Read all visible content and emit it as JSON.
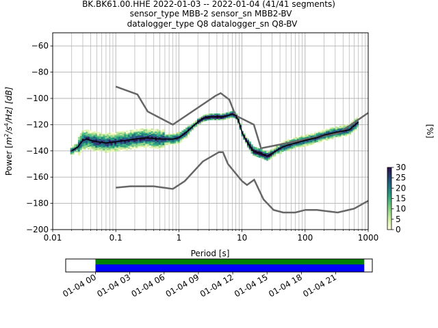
{
  "chart_data": [
    {
      "type": "heatmap",
      "title_lines": [
        "BK.BK61.00.HHE   2022-01-03 -- 2022-01-04  (41/41 segments)",
        "sensor_type MBB-2 sensor_sn MBB2-BV",
        "datalogger_type Q8 datalogger_sn Q8-BV"
      ],
      "xlabel": "Period [s]",
      "ylabel_parts": {
        "pre": "Power [",
        "m": "m",
        "m_sup": "2",
        "s": "/s",
        "s_sup": "4",
        "post": "/Hz] [dB]"
      },
      "xscale": "log",
      "xlim": [
        0.01,
        1000
      ],
      "ylim": [
        -200,
        -50
      ],
      "x_tick_labels": [
        {
          "value": 0.01,
          "label": "0.01"
        },
        {
          "value": 0.1,
          "label": "0.1"
        },
        {
          "value": 1,
          "label": "1"
        },
        {
          "value": 10,
          "label": "10"
        },
        {
          "value": 100,
          "label": "100"
        },
        {
          "value": 1000,
          "label": "1000"
        }
      ],
      "y_tick_labels": [
        {
          "value": -60,
          "label": "−60"
        },
        {
          "value": -80,
          "label": "−80"
        },
        {
          "value": -100,
          "label": "−100"
        },
        {
          "value": -120,
          "label": "−120"
        },
        {
          "value": -140,
          "label": "−140"
        },
        {
          "value": -160,
          "label": "−160"
        },
        {
          "value": -180,
          "label": "−180"
        },
        {
          "value": -200,
          "label": "−200"
        }
      ],
      "grid": true,
      "noise_models": {
        "nhnm": {
          "period": [
            0.1,
            0.22,
            0.32,
            0.8,
            3.8,
            4.6,
            6.3,
            7.9,
            15.4,
            20,
            354.8,
            1000
          ],
          "db": [
            -91,
            -97,
            -110,
            -120,
            -98,
            -96,
            -101,
            -113,
            -120,
            -138,
            -126,
            -111
          ]
        },
        "nlnm": {
          "period": [
            0.1,
            0.17,
            0.4,
            0.8,
            1.24,
            2.4,
            4.3,
            5,
            6,
            10,
            12,
            15.6,
            21.9,
            31.6,
            45,
            70,
            101,
            154,
            328,
            600,
            1000
          ],
          "db": [
            -168,
            -167,
            -167,
            -169,
            -163,
            -148,
            -141,
            -141,
            -150,
            -163,
            -166,
            -162,
            -177,
            -185,
            -187,
            -187,
            -185,
            -185,
            -187,
            -184,
            -178
          ]
        }
      },
      "mode_curve": {
        "period": [
          0.02,
          0.025,
          0.03,
          0.035,
          0.04,
          0.05,
          0.07,
          0.1,
          0.15,
          0.2,
          0.3,
          0.5,
          0.8,
          1,
          1.3,
          1.6,
          2,
          2.5,
          3,
          4,
          5,
          6,
          7,
          8,
          9,
          10,
          12,
          15,
          20,
          25,
          30,
          40,
          50,
          70,
          100,
          150,
          200,
          300,
          500,
          700
        ],
        "db": [
          -140,
          -137,
          -132,
          -131,
          -132,
          -133,
          -134,
          -133,
          -132,
          -131,
          -130,
          -131,
          -131,
          -130,
          -126,
          -122,
          -118,
          -115,
          -114,
          -114,
          -114,
          -113,
          -112,
          -113,
          -118,
          -126,
          -133,
          -140,
          -142,
          -144,
          -142,
          -138,
          -136,
          -134,
          -132,
          -130,
          -128,
          -126,
          -124,
          -118
        ]
      },
      "colorbar": {
        "label": "[%]",
        "range": [
          0,
          30
        ],
        "ticks": [
          "0",
          "5",
          "10",
          "15",
          "20",
          "25",
          "30"
        ]
      }
    },
    {
      "type": "timeline",
      "x_tick_labels": [
        "01-04 00",
        "01-04 03",
        "01-04 06",
        "01-04 09",
        "01-04 12",
        "01-04 15",
        "01-04 18",
        "01-04 21"
      ],
      "span_hours": [
        -2.6,
        24.2
      ],
      "data_hours": [
        0,
        23.5
      ],
      "colors": {
        "coverage": "#008000",
        "data": "#0000ff"
      }
    }
  ]
}
